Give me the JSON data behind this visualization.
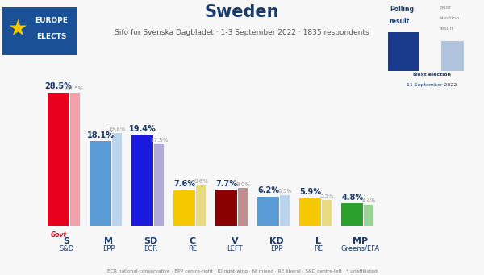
{
  "title": "Sweden",
  "subtitle": "Sifo for Svenska Dagbladet · 1-3 September 2022 · 1835 respondents",
  "footnote": "ECR national-conservative · EPP centre-right · ID right-wing · NI mixed · RE liberal · S&D centre-left · * unaffiliated",
  "background_color": "#f7f7f7",
  "parties": [
    "S",
    "M",
    "SD",
    "C",
    "V",
    "KD",
    "L",
    "MP"
  ],
  "eu_groups": [
    "S&D",
    "EPP",
    "ECR",
    "RE",
    "LEFT",
    "EPP",
    "RE",
    "Greens/EFA"
  ],
  "values": [
    28.5,
    18.1,
    19.4,
    7.6,
    7.7,
    6.2,
    5.9,
    4.8
  ],
  "prev_values": [
    28.5,
    19.8,
    17.5,
    8.6,
    8.0,
    6.5,
    5.5,
    4.4
  ],
  "bar_colors": [
    "#e8001c",
    "#5b9bd5",
    "#1a1adc",
    "#f5c800",
    "#8b0000",
    "#5b9bd5",
    "#f5c800",
    "#2ca02c"
  ],
  "prev_bar_colors": [
    "#f4a0aa",
    "#b8d4ee",
    "#b0a8d8",
    "#e8da80",
    "#c09090",
    "#b8d4ee",
    "#e8da80",
    "#98d498"
  ],
  "govt_label": "Govt",
  "govt_label_color": "#e8001c",
  "title_color": "#1a3a6b",
  "subtitle_color": "#555555",
  "bar_label_color": "#1a3a6b",
  "prev_label_color": "#999999",
  "ylim": [
    0,
    33
  ],
  "main_bar_width": 0.52,
  "prev_bar_width": 0.22,
  "bar_spacing": 1.0,
  "logo_color": "#1a5096",
  "logo_star_color": "#f5c800",
  "polling_bar_color": "#1a3a8b",
  "polling_prev_bar_color": "#b0c4de"
}
